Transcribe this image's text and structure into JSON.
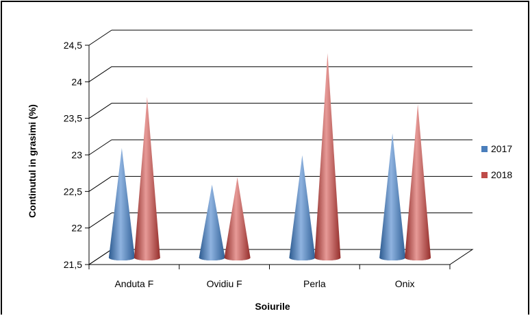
{
  "chart_data": {
    "type": "bar",
    "style": "3d-cone",
    "title": "",
    "xlabel": "Soiurile",
    "ylabel": "Continutul in grasimi (%)",
    "ylim": [
      21.5,
      24.5
    ],
    "ytick_step": 0.5,
    "yticks": [
      "21,5",
      "22",
      "22,5",
      "23",
      "23,5",
      "24",
      "24,5"
    ],
    "categories": [
      "Anduta F",
      "Ovidiu F",
      "Perla",
      "Onix"
    ],
    "series": [
      {
        "name": "2017",
        "values": [
          23.0,
          22.5,
          22.9,
          23.2
        ],
        "color": "#4a7ebb"
      },
      {
        "name": "2018",
        "values": [
          23.7,
          22.6,
          24.3,
          23.6
        ],
        "color": "#be4b48"
      }
    ],
    "grid": true,
    "legend": "right"
  }
}
